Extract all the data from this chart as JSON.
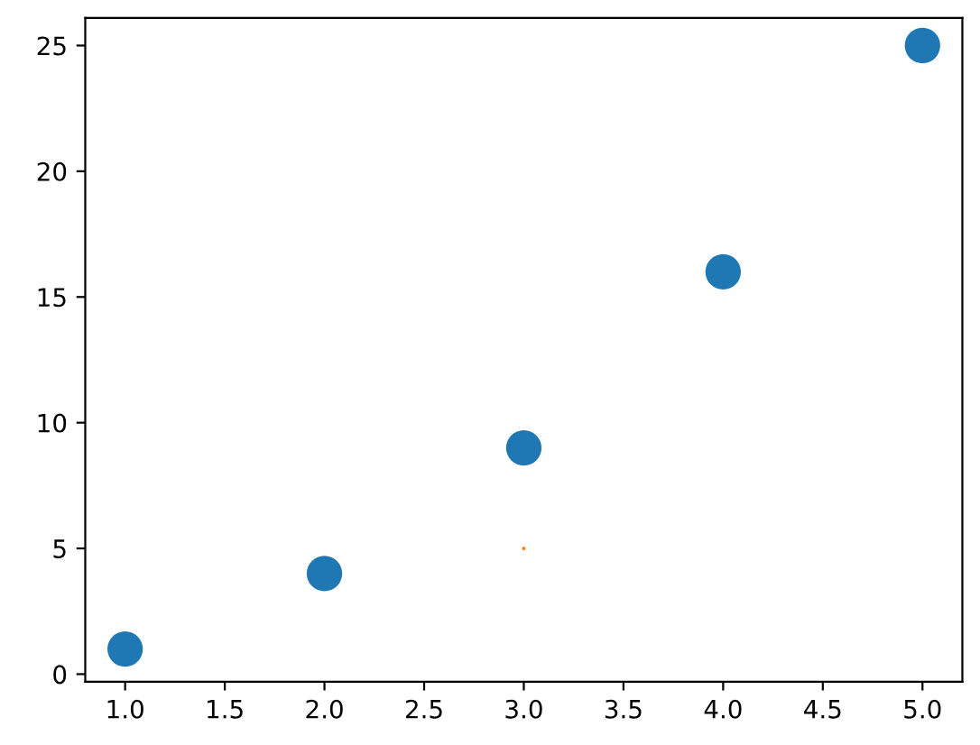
{
  "chart_data": {
    "type": "scatter",
    "series": [
      {
        "color": "#1f77b4",
        "x": [
          1,
          2,
          3,
          4,
          5
        ],
        "values": [
          1,
          4,
          9,
          16,
          25
        ]
      },
      {
        "color": "#ff7f0e",
        "x": [
          3
        ],
        "values": [
          5
        ]
      }
    ],
    "xlim": [
      0.8,
      5.2
    ],
    "ylim": [
      -0.3,
      26.1
    ],
    "xticks": [
      {
        "value": 1,
        "label": "1.0"
      },
      {
        "value": 1.5,
        "label": "1.5"
      },
      {
        "value": 2,
        "label": "2.0"
      },
      {
        "value": 2.5,
        "label": "2.5"
      },
      {
        "value": 3,
        "label": "3.0"
      },
      {
        "value": 3.5,
        "label": "3.5"
      },
      {
        "value": 4,
        "label": "4.0"
      },
      {
        "value": 4.5,
        "label": "4.5"
      },
      {
        "value": 5,
        "label": "5.0"
      }
    ],
    "yticks": [
      0,
      5,
      10,
      15,
      20,
      25
    ],
    "grid": false
  }
}
